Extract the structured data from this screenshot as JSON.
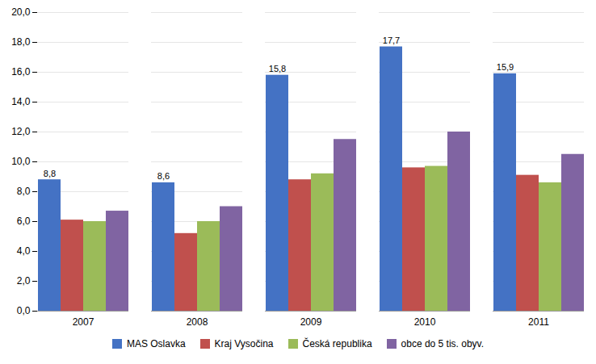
{
  "chart_data": {
    "type": "bar",
    "categories": [
      "2007",
      "2008",
      "2009",
      "2010",
      "2011"
    ],
    "series": [
      {
        "name": "MAS Oslavka",
        "color": "#4472C4",
        "values": [
          8.8,
          8.6,
          15.8,
          17.7,
          15.9
        ],
        "data_labels": true,
        "value_labels": [
          "8,8",
          "8,6",
          "15,8",
          "17,7",
          "15,9"
        ]
      },
      {
        "name": "Kraj Vysočina",
        "color": "#C0504D",
        "values": [
          6.1,
          5.2,
          8.8,
          9.6,
          9.1
        ]
      },
      {
        "name": "Česká republika",
        "color": "#9BBB59",
        "values": [
          6.0,
          6.0,
          9.2,
          9.7,
          8.6
        ]
      },
      {
        "name": "obce do 5 tis. obyv.",
        "color": "#8064A2",
        "values": [
          6.7,
          7.0,
          11.5,
          12.0,
          10.5
        ]
      }
    ],
    "ylim": [
      0,
      20
    ],
    "yticks": [
      {
        "value": 0,
        "label": "0,0"
      },
      {
        "value": 2,
        "label": "2,0"
      },
      {
        "value": 4,
        "label": "4,0"
      },
      {
        "value": 6,
        "label": "6,0"
      },
      {
        "value": 8,
        "label": "8,0"
      },
      {
        "value": 10,
        "label": "10,0"
      },
      {
        "value": 12,
        "label": "12,0"
      },
      {
        "value": 14,
        "label": "14,0"
      },
      {
        "value": 16,
        "label": "16,0"
      },
      {
        "value": 18,
        "label": "18,0"
      },
      {
        "value": 20,
        "label": "20,0"
      }
    ],
    "grid": true,
    "legend": "bottom"
  }
}
